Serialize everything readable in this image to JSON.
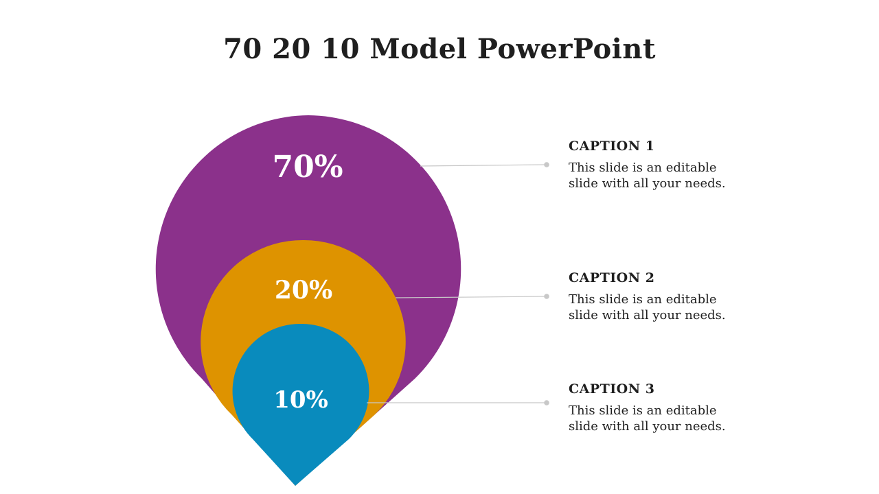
{
  "title": "70 20 10 Model PowerPoint",
  "layers": [
    {
      "label": "70%",
      "color": "#8b318b"
    },
    {
      "label": "20%",
      "color": "#de9300"
    },
    {
      "label": "10%",
      "color": "#098bbd"
    }
  ],
  "connector_color": "#c8c8c8",
  "captions": [
    {
      "title": "CAPTION 1",
      "text": "This slide is an editable slide with all your needs."
    },
    {
      "title": "CAPTION 2",
      "text": "This slide is an editable slide with all your needs."
    },
    {
      "title": "CAPTION 3",
      "text": "This slide is an editable slide with all your needs."
    }
  ]
}
